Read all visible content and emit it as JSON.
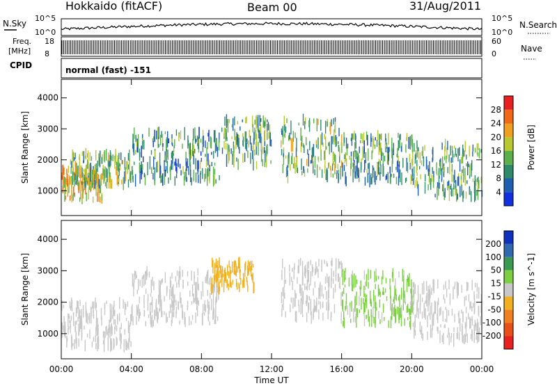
{
  "header": {
    "station": "Hokkaido (fitACF)",
    "beam": "Beam 00",
    "date": "31/Aug/2011"
  },
  "noise_panel": {
    "left_label": "N.Sky",
    "right_label": "N.Search",
    "left_ticks": [
      "10^5",
      "10^0"
    ],
    "right_ticks": [
      "10^5",
      "10^0"
    ]
  },
  "freq_panel": {
    "left_label_1": "Freq.",
    "left_label_2": "[MHz]",
    "left_ticks": [
      "18",
      "8"
    ],
    "right_ticks": [
      "60",
      "0"
    ],
    "right_label": "Nave"
  },
  "cpid": {
    "label": "CPID",
    "value": "normal (fast) -151"
  },
  "chart_data": [
    {
      "type": "scatter",
      "title": "",
      "xlabel": "",
      "ylabel": "Slant Range [km]",
      "x_ticks": [
        "00:00",
        "04:00",
        "08:00",
        "12:00",
        "16:00",
        "20:00",
        "00:00"
      ],
      "y_ticks": [
        "1000",
        "2000",
        "3000",
        "4000"
      ],
      "ylim": [
        200,
        4600
      ],
      "xlim": [
        0,
        24
      ],
      "colorbar": {
        "label": "Power [dB]",
        "ticks": [
          "4",
          "8",
          "12",
          "16",
          "20",
          "24",
          "28"
        ],
        "range": [
          0,
          32
        ],
        "colors": [
          "#1030e0",
          "#1f5fb0",
          "#2e8a6a",
          "#5ab04a",
          "#b8c830",
          "#f0a020",
          "#f06818",
          "#e82020"
        ]
      },
      "bands": [
        {
          "t0": 0,
          "t1": 2.5,
          "r0": 700,
          "r1": 1700,
          "level": 20
        },
        {
          "t0": 0.5,
          "t1": 4,
          "r0": 1200,
          "r1": 2200,
          "level": 14
        },
        {
          "t0": 4,
          "t1": 9,
          "r0": 1300,
          "r1": 2900,
          "level": 10
        },
        {
          "t0": 9,
          "t1": 12,
          "r0": 1800,
          "r1": 3300,
          "level": 12
        },
        {
          "t0": 12.5,
          "t1": 16,
          "r0": 1400,
          "r1": 3300,
          "level": 14
        },
        {
          "t0": 16,
          "t1": 20,
          "r0": 1300,
          "r1": 2800,
          "level": 11
        },
        {
          "t0": 20,
          "t1": 24,
          "r0": 800,
          "r1": 2500,
          "level": 12
        }
      ]
    },
    {
      "type": "scatter",
      "title": "",
      "xlabel": "Time UT",
      "ylabel": "Slant Range [km]",
      "x_ticks": [
        "00:00",
        "04:00",
        "08:00",
        "12:00",
        "16:00",
        "20:00",
        "00:00"
      ],
      "y_ticks": [
        "1000",
        "2000",
        "3000",
        "4000"
      ],
      "ylim": [
        200,
        4600
      ],
      "xlim": [
        0,
        24
      ],
      "colorbar": {
        "label": "Velocity [m s^-1]",
        "ticks": [
          "200",
          "100",
          "50",
          "15",
          "-15",
          "-50",
          "-100",
          "-200"
        ],
        "colors": [
          "#1030c0",
          "#2f6ab0",
          "#3a9a50",
          "#7ad040",
          "#c8c8c8",
          "#f0b020",
          "#f08020",
          "#e85018",
          "#e82020"
        ]
      },
      "bands": [
        {
          "t0": 0,
          "t1": 4,
          "r0": 600,
          "r1": 2000,
          "level": 0
        },
        {
          "t0": 4,
          "t1": 9,
          "r0": 1300,
          "r1": 3000,
          "level": 0
        },
        {
          "t0": 8.5,
          "t1": 11,
          "r0": 2400,
          "r1": 3300,
          "level": -40
        },
        {
          "t0": 12.5,
          "t1": 16,
          "r0": 1500,
          "r1": 3300,
          "level": 5
        },
        {
          "t0": 16,
          "t1": 20,
          "r0": 1300,
          "r1": 2900,
          "level": 20
        },
        {
          "t0": 20,
          "t1": 24,
          "r0": 800,
          "r1": 2600,
          "level": 0
        }
      ]
    }
  ]
}
